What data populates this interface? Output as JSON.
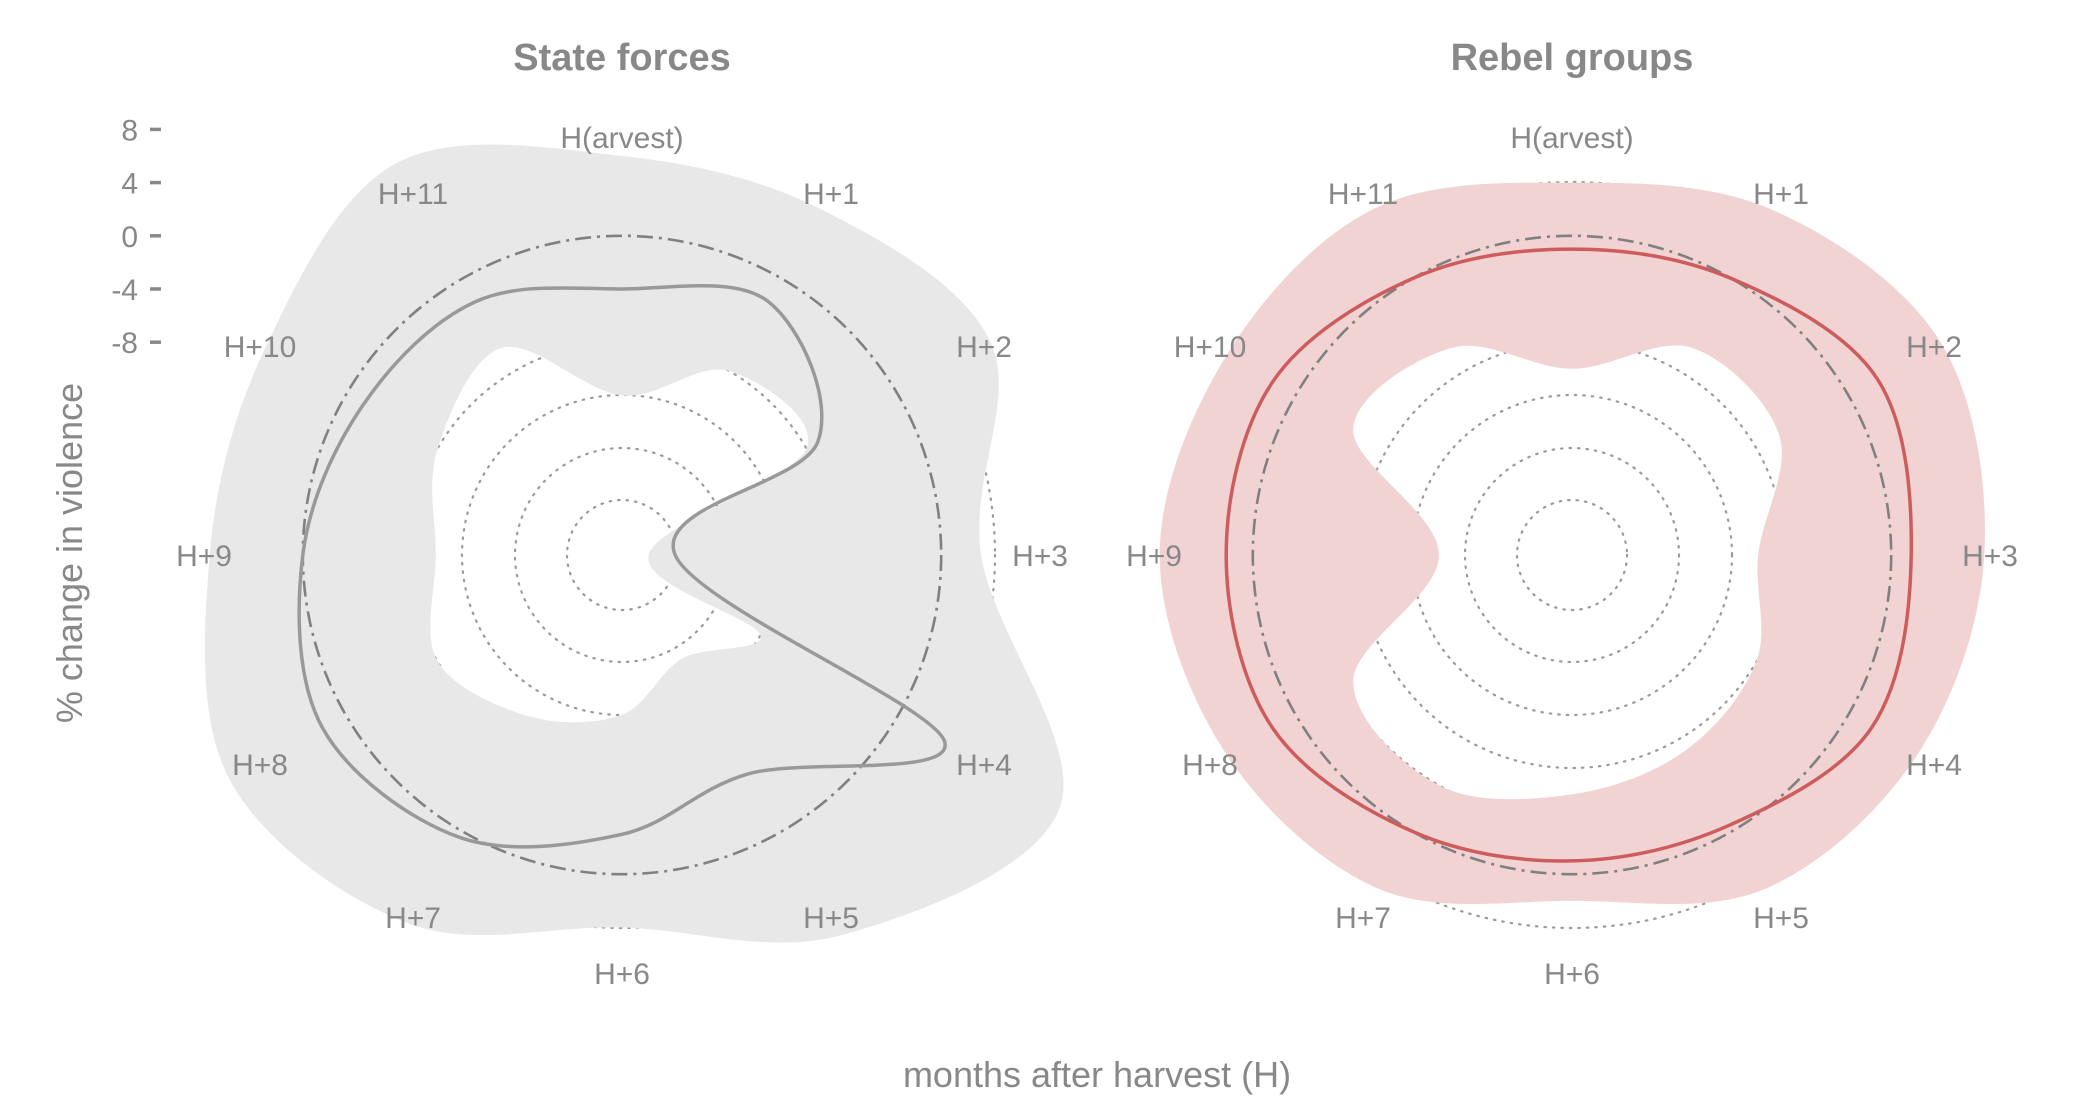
{
  "figure": {
    "xlabel": "months after harvest (H)",
    "ylabel": "% change in violence"
  },
  "chart_data": [
    {
      "type": "radar",
      "title": "State forces",
      "categories": [
        "H(arvest)",
        "H+1",
        "H+2",
        "H+3",
        "H+4",
        "H+5",
        "H+6",
        "H+7",
        "H+8",
        "H+9",
        "H+10",
        "H+11"
      ],
      "radial_ticks": [
        8,
        4,
        0,
        -4,
        -8
      ],
      "rlim": [
        -24,
        12
      ],
      "reference_line": 0,
      "grid": true,
      "series": [
        {
          "estimate": [
            -4,
            -2,
            -7,
            -20,
            4,
            -5,
            -3,
            0.5,
            2,
            0,
            -1.5,
            -2
          ],
          "ci_lower": [
            -12,
            -8,
            -8,
            -22,
            -12,
            -15,
            -12,
            -10,
            -8,
            -10,
            -8,
            -6
          ],
          "ci_upper": [
            6,
            6,
            8,
            3,
            14,
            9,
            4,
            8,
            10,
            7,
            7,
            10
          ],
          "color": "#999999",
          "band_color": "#e8e8e8"
        }
      ]
    },
    {
      "type": "radar",
      "title": "Rebel groups",
      "categories": [
        "H(arvest)",
        "H+1",
        "H+2",
        "H+3",
        "H+4",
        "H+5",
        "H+6",
        "H+7",
        "H+8",
        "H+9",
        "H+10",
        "H+11"
      ],
      "radial_ticks": [
        8,
        4,
        0,
        -4,
        -8
      ],
      "rlim": [
        -24,
        12
      ],
      "reference_line": 0,
      "grid": true,
      "series": [
        {
          "estimate": [
            -1,
            0,
            2.5,
            1.5,
            2,
            -0.5,
            -1,
            0,
            2,
            2,
            2,
            0
          ],
          "ci_lower": [
            -10,
            -6,
            -6,
            -10,
            -8,
            -7,
            -6,
            -4,
            -5,
            -14,
            -5,
            -6
          ],
          "ci_upper": [
            4,
            6,
            8,
            7,
            6,
            5,
            2,
            5,
            6,
            7,
            6,
            6
          ],
          "color": "#cd5c5c",
          "band_color": "#f2d3d3"
        }
      ]
    }
  ]
}
